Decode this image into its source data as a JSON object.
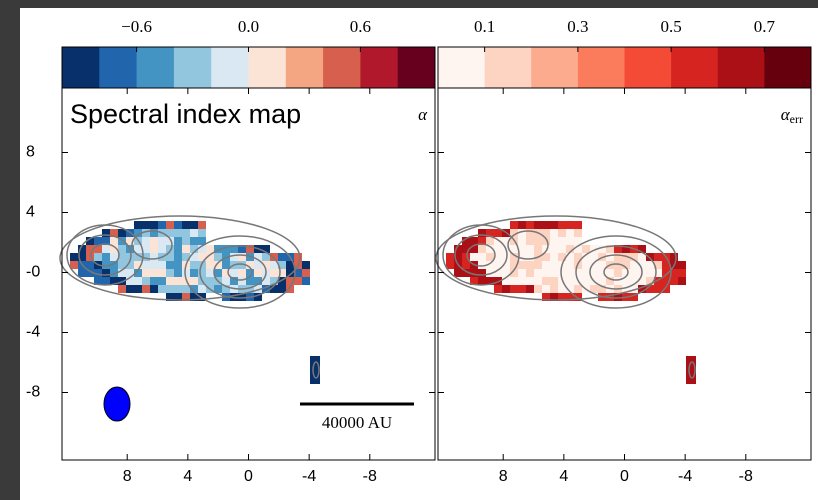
{
  "chart_data": [
    {
      "type": "heatmap",
      "title": "Spectral index map",
      "label": "α",
      "colorbar": {
        "lim": [
          -1.0,
          1.0
        ],
        "ticks": [
          {
            "value": -0.6,
            "label": "−0.6"
          },
          {
            "value": 0.0,
            "label": "0.0"
          },
          {
            "value": 0.6,
            "label": "0.6"
          }
        ],
        "colors": [
          "#08306b",
          "#2166ac",
          "#4393c3",
          "#92c5de",
          "#d9e8f2",
          "#fbe3d6",
          "#f4a582",
          "#d6604d",
          "#b2182b",
          "#67001f"
        ]
      },
      "xlim": [
        12.3,
        -12.3
      ],
      "xticks": [
        8,
        4,
        0,
        -4,
        -8
      ],
      "ylim": [
        -12.5,
        12.3
      ],
      "yticks": [
        8,
        4,
        {
          "value": 0,
          "label": "-0"
        },
        -4,
        -8
      ],
      "scale_bar": "40000 AU"
    },
    {
      "type": "heatmap",
      "label": "α_err",
      "colorbar": {
        "lim": [
          0.0,
          0.8
        ],
        "ticks": [
          0.1,
          0.3,
          0.5,
          0.7
        ],
        "colors": [
          "#fff5f0",
          "#fdd3c1",
          "#fcab8f",
          "#fb7c5c",
          "#f34b36",
          "#d62421",
          "#ab1016",
          "#67000d"
        ]
      },
      "xlim": [
        12.3,
        -12.3
      ],
      "xticks": [
        8,
        4,
        0,
        -4,
        -8
      ],
      "ylim": [
        -12.5,
        12.3
      ],
      "yticks": [
        8,
        4,
        0,
        -4,
        -8
      ]
    }
  ]
}
